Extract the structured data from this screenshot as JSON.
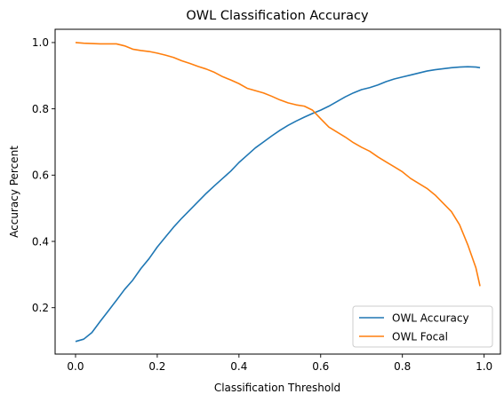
{
  "chart_data": {
    "type": "line",
    "title": "OWL Classification Accuracy",
    "xlabel": "Classification Threshold",
    "ylabel": "Accuracy Percent",
    "xlim": [
      -0.05,
      1.04
    ],
    "ylim": [
      0.06,
      1.04
    ],
    "xticks": [
      0.0,
      0.2,
      0.4,
      0.6,
      0.8,
      1.0
    ],
    "xtick_labels": [
      "0.0",
      "0.2",
      "0.4",
      "0.6",
      "0.8",
      "1.0"
    ],
    "yticks": [
      0.2,
      0.4,
      0.6,
      0.8,
      1.0
    ],
    "ytick_labels": [
      "0.2",
      "0.4",
      "0.6",
      "0.8",
      "1.0"
    ],
    "grid": false,
    "legend_position": "lower-right",
    "series": [
      {
        "name": "OWL Accuracy",
        "color": "#1f77b4",
        "x": [
          0.0,
          0.02,
          0.04,
          0.06,
          0.08,
          0.1,
          0.12,
          0.14,
          0.16,
          0.18,
          0.2,
          0.22,
          0.24,
          0.26,
          0.28,
          0.3,
          0.32,
          0.34,
          0.36,
          0.38,
          0.4,
          0.42,
          0.44,
          0.46,
          0.48,
          0.5,
          0.52,
          0.54,
          0.56,
          0.58,
          0.6,
          0.62,
          0.64,
          0.66,
          0.68,
          0.7,
          0.72,
          0.74,
          0.76,
          0.78,
          0.8,
          0.82,
          0.84,
          0.86,
          0.88,
          0.9,
          0.92,
          0.94,
          0.96,
          0.98,
          0.99
        ],
        "y": [
          0.098,
          0.105,
          0.125,
          0.158,
          0.19,
          0.222,
          0.255,
          0.283,
          0.318,
          0.348,
          0.383,
          0.413,
          0.443,
          0.47,
          0.495,
          0.52,
          0.545,
          0.568,
          0.59,
          0.612,
          0.638,
          0.66,
          0.682,
          0.7,
          0.718,
          0.735,
          0.75,
          0.763,
          0.775,
          0.786,
          0.796,
          0.808,
          0.822,
          0.836,
          0.848,
          0.858,
          0.864,
          0.872,
          0.882,
          0.89,
          0.896,
          0.902,
          0.908,
          0.914,
          0.918,
          0.921,
          0.924,
          0.926,
          0.927,
          0.926,
          0.924
        ]
      },
      {
        "name": "OWL Focal",
        "color": "#ff7f0e",
        "x": [
          0.0,
          0.02,
          0.04,
          0.06,
          0.08,
          0.1,
          0.12,
          0.14,
          0.16,
          0.18,
          0.2,
          0.22,
          0.24,
          0.26,
          0.28,
          0.3,
          0.32,
          0.34,
          0.36,
          0.38,
          0.4,
          0.42,
          0.44,
          0.46,
          0.48,
          0.5,
          0.52,
          0.54,
          0.56,
          0.58,
          0.6,
          0.62,
          0.64,
          0.66,
          0.68,
          0.7,
          0.72,
          0.74,
          0.76,
          0.78,
          0.8,
          0.82,
          0.84,
          0.86,
          0.88,
          0.9,
          0.92,
          0.94,
          0.96,
          0.98,
          0.99
        ],
        "y": [
          1.0,
          0.998,
          0.997,
          0.996,
          0.996,
          0.996,
          0.99,
          0.98,
          0.976,
          0.973,
          0.968,
          0.962,
          0.955,
          0.945,
          0.937,
          0.928,
          0.92,
          0.91,
          0.897,
          0.887,
          0.876,
          0.862,
          0.855,
          0.848,
          0.838,
          0.827,
          0.818,
          0.812,
          0.808,
          0.796,
          0.77,
          0.745,
          0.73,
          0.715,
          0.698,
          0.684,
          0.672,
          0.655,
          0.64,
          0.625,
          0.61,
          0.59,
          0.575,
          0.56,
          0.54,
          0.515,
          0.49,
          0.45,
          0.39,
          0.32,
          0.265
        ]
      }
    ]
  }
}
